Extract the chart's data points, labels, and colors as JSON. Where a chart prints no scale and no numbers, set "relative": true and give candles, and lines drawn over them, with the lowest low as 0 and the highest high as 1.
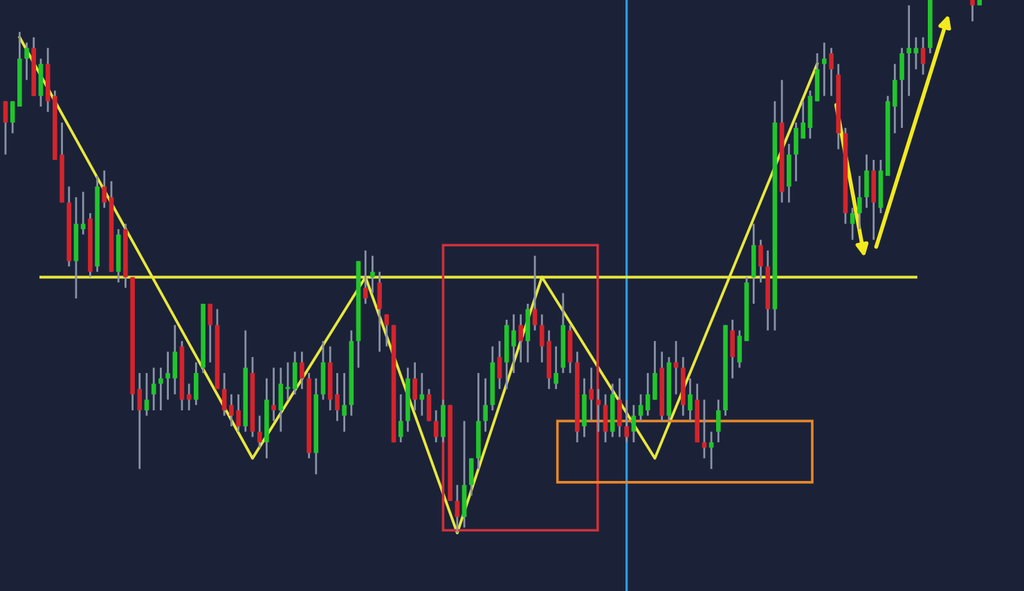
{
  "chart_data": {
    "type": "candlestick",
    "relative": true,
    "categories": [
      null,
      null,
      null,
      null,
      null,
      null,
      null,
      null,
      null,
      null,
      null,
      null,
      null,
      null,
      null,
      null,
      null,
      null,
      null,
      null,
      null,
      null,
      null,
      null,
      null,
      null,
      null,
      null,
      null,
      null,
      null,
      null,
      null,
      null,
      null,
      null,
      null,
      null,
      null,
      null,
      null,
      null,
      null,
      null,
      null,
      null,
      null,
      null,
      null,
      null,
      null,
      null,
      null,
      null,
      null,
      null,
      null,
      null,
      null,
      null,
      null,
      null,
      null,
      null,
      null,
      null,
      null,
      null,
      null,
      null,
      null,
      null,
      null,
      null,
      null,
      null,
      null,
      null,
      null,
      null,
      null,
      null,
      null,
      null,
      null,
      null,
      null,
      null,
      null,
      null,
      null,
      null,
      null,
      null,
      null,
      null,
      null,
      null,
      null,
      null,
      null,
      null,
      null,
      null,
      null,
      null,
      null,
      null,
      null,
      null,
      null,
      null,
      null,
      null,
      null,
      null,
      null,
      null,
      null,
      null,
      null,
      null,
      null,
      null,
      null,
      null,
      null,
      null,
      null,
      null,
      null,
      null,
      null,
      null,
      null,
      null,
      null,
      null,
      null,
      null,
      null,
      null,
      null,
      null,
      null
    ],
    "ohlc": [
      [
        0.81,
        0.81,
        0.71,
        0.77
      ],
      [
        0.77,
        0.81,
        0.75,
        0.81
      ],
      [
        0.8,
        0.94,
        0.8,
        0.89
      ],
      [
        0.89,
        0.92,
        0.85,
        0.91
      ],
      [
        0.91,
        0.93,
        0.82,
        0.82
      ],
      [
        0.82,
        0.89,
        0.8,
        0.88
      ],
      [
        0.88,
        0.91,
        0.79,
        0.81
      ],
      [
        0.82,
        0.83,
        0.7,
        0.7
      ],
      [
        0.71,
        0.77,
        0.62,
        0.62
      ],
      [
        0.62,
        0.65,
        0.5,
        0.51
      ],
      [
        0.51,
        0.63,
        0.44,
        0.58
      ],
      [
        0.57,
        0.64,
        0.56,
        0.58
      ],
      [
        0.59,
        0.6,
        0.48,
        0.49
      ],
      [
        0.5,
        0.67,
        0.49,
        0.65
      ],
      [
        0.65,
        0.68,
        0.61,
        0.62
      ],
      [
        0.63,
        0.66,
        0.49,
        0.49
      ],
      [
        0.49,
        0.57,
        0.47,
        0.56
      ],
      [
        0.57,
        0.58,
        0.46,
        0.48
      ],
      [
        0.48,
        0.48,
        0.23,
        0.26
      ],
      [
        0.27,
        0.3,
        0.12,
        0.23
      ],
      [
        0.23,
        0.3,
        0.22,
        0.25
      ],
      [
        0.26,
        0.31,
        0.23,
        0.28
      ],
      [
        0.28,
        0.31,
        0.23,
        0.29
      ],
      [
        0.29,
        0.34,
        0.25,
        0.3
      ],
      [
        0.29,
        0.39,
        0.26,
        0.34
      ],
      [
        0.35,
        0.36,
        0.23,
        0.25
      ],
      [
        0.26,
        0.28,
        0.23,
        0.25
      ],
      [
        0.25,
        0.32,
        0.24,
        0.3
      ],
      [
        0.31,
        0.43,
        0.3,
        0.43
      ],
      [
        0.43,
        0.43,
        0.32,
        0.39
      ],
      [
        0.39,
        0.42,
        0.27,
        0.27
      ],
      [
        0.27,
        0.3,
        0.22,
        0.23
      ],
      [
        0.24,
        0.26,
        0.2,
        0.22
      ],
      [
        0.23,
        0.26,
        0.19,
        0.2
      ],
      [
        0.2,
        0.38,
        0.19,
        0.31
      ],
      [
        0.3,
        0.33,
        0.18,
        0.19
      ],
      [
        0.19,
        0.22,
        0.16,
        0.17
      ],
      [
        0.17,
        0.29,
        0.14,
        0.25
      ],
      [
        0.24,
        0.31,
        0.21,
        0.23
      ],
      [
        0.23,
        0.31,
        0.19,
        0.28
      ],
      [
        0.27,
        0.32,
        0.25,
        0.27
      ],
      [
        0.27,
        0.34,
        0.26,
        0.32
      ],
      [
        0.32,
        0.34,
        0.27,
        0.29
      ],
      [
        0.29,
        0.3,
        0.14,
        0.15
      ],
      [
        0.15,
        0.29,
        0.11,
        0.26
      ],
      [
        0.26,
        0.36,
        0.25,
        0.32
      ],
      [
        0.32,
        0.35,
        0.23,
        0.25
      ],
      [
        0.26,
        0.3,
        0.21,
        0.23
      ],
      [
        0.22,
        0.3,
        0.19,
        0.24
      ],
      [
        0.24,
        0.38,
        0.22,
        0.36
      ],
      [
        0.36,
        0.51,
        0.31,
        0.51
      ],
      [
        0.46,
        0.53,
        0.43,
        0.44
      ],
      [
        0.48,
        0.52,
        0.45,
        0.49
      ],
      [
        0.47,
        0.49,
        0.34,
        0.42
      ],
      [
        0.41,
        0.41,
        0.35,
        0.39
      ],
      [
        0.39,
        0.39,
        0.17,
        0.17
      ],
      [
        0.18,
        0.26,
        0.17,
        0.21
      ],
      [
        0.21,
        0.31,
        0.19,
        0.29
      ],
      [
        0.29,
        0.32,
        0.23,
        0.25
      ],
      [
        0.25,
        0.3,
        0.22,
        0.26
      ],
      [
        0.26,
        0.27,
        0.21,
        0.21
      ],
      [
        0.21,
        0.23,
        0.17,
        0.18
      ],
      [
        0.18,
        0.25,
        0.17,
        0.24
      ],
      [
        0.24,
        0.24,
        0.06,
        0.06
      ],
      [
        0.06,
        0.09,
        0.0,
        0.03
      ],
      [
        0.03,
        0.21,
        0.01,
        0.09
      ],
      [
        0.09,
        0.14,
        0.07,
        0.14
      ],
      [
        0.14,
        0.3,
        0.12,
        0.21
      ],
      [
        0.21,
        0.29,
        0.19,
        0.24
      ],
      [
        0.24,
        0.35,
        0.23,
        0.32
      ],
      [
        0.33,
        0.36,
        0.27,
        0.29
      ],
      [
        0.32,
        0.4,
        0.27,
        0.39
      ],
      [
        0.35,
        0.41,
        0.3,
        0.38
      ],
      [
        0.39,
        0.41,
        0.32,
        0.36
      ],
      [
        0.36,
        0.43,
        0.32,
        0.42
      ],
      [
        0.42,
        0.52,
        0.38,
        0.39
      ],
      [
        0.39,
        0.41,
        0.32,
        0.35
      ],
      [
        0.36,
        0.38,
        0.27,
        0.29
      ],
      [
        0.28,
        0.35,
        0.27,
        0.3
      ],
      [
        0.31,
        0.45,
        0.3,
        0.39
      ],
      [
        0.38,
        0.39,
        0.3,
        0.32
      ],
      [
        0.32,
        0.34,
        0.17,
        0.19
      ],
      [
        0.2,
        0.29,
        0.18,
        0.26
      ],
      [
        0.27,
        0.31,
        0.21,
        0.25
      ],
      [
        0.25,
        0.27,
        0.19,
        0.24
      ],
      [
        0.24,
        0.26,
        0.17,
        0.19
      ],
      [
        0.19,
        0.28,
        0.18,
        0.26
      ],
      [
        0.25,
        0.29,
        0.18,
        0.2
      ],
      [
        0.2,
        0.25,
        0.17,
        0.18
      ],
      [
        0.19,
        0.24,
        0.17,
        0.22
      ],
      [
        0.22,
        0.26,
        0.21,
        0.24
      ],
      [
        0.23,
        0.3,
        0.22,
        0.26
      ],
      [
        0.25,
        0.36,
        0.25,
        0.3
      ],
      [
        0.31,
        0.34,
        0.21,
        0.22
      ],
      [
        0.22,
        0.33,
        0.21,
        0.32
      ],
      [
        0.32,
        0.36,
        0.26,
        0.31
      ],
      [
        0.31,
        0.33,
        0.22,
        0.24
      ],
      [
        0.23,
        0.29,
        0.21,
        0.26
      ],
      [
        0.25,
        0.28,
        0.17,
        0.17
      ],
      [
        0.17,
        0.25,
        0.14,
        0.16
      ],
      [
        0.16,
        0.19,
        0.12,
        0.17
      ],
      [
        0.19,
        0.25,
        0.17,
        0.23
      ],
      [
        0.23,
        0.39,
        0.22,
        0.39
      ],
      [
        0.38,
        0.4,
        0.29,
        0.33
      ],
      [
        0.32,
        0.38,
        0.31,
        0.37
      ],
      [
        0.36,
        0.48,
        0.36,
        0.47
      ],
      [
        0.48,
        0.58,
        0.43,
        0.54
      ],
      [
        0.54,
        0.55,
        0.47,
        0.5
      ],
      [
        0.5,
        0.53,
        0.38,
        0.42
      ],
      [
        0.42,
        0.81,
        0.38,
        0.77
      ],
      [
        0.77,
        0.85,
        0.62,
        0.64
      ],
      [
        0.65,
        0.73,
        0.62,
        0.71
      ],
      [
        0.71,
        0.77,
        0.66,
        0.76
      ],
      [
        0.74,
        0.81,
        0.74,
        0.77
      ],
      [
        0.76,
        0.83,
        0.74,
        0.82
      ],
      [
        0.81,
        0.9,
        0.81,
        0.87
      ],
      [
        0.88,
        0.92,
        0.82,
        0.89
      ],
      [
        0.9,
        0.91,
        0.82,
        0.87
      ],
      [
        0.86,
        0.88,
        0.72,
        0.75
      ],
      [
        0.75,
        0.76,
        0.58,
        0.6
      ],
      [
        0.58,
        0.61,
        0.55,
        0.6
      ],
      [
        0.6,
        0.67,
        0.57,
        0.63
      ],
      [
        0.63,
        0.71,
        0.61,
        0.68
      ],
      [
        0.68,
        0.7,
        0.55,
        0.62
      ],
      [
        0.61,
        0.7,
        0.6,
        0.68
      ],
      [
        0.67,
        0.82,
        0.67,
        0.81
      ],
      [
        0.8,
        0.88,
        0.75,
        0.85
      ],
      [
        0.85,
        0.91,
        0.76,
        0.9
      ],
      [
        0.9,
        0.99,
        0.82,
        0.91
      ],
      [
        0.9,
        0.93,
        0.87,
        0.91
      ],
      [
        0.91,
        0.93,
        0.86,
        0.88
      ],
      [
        0.91,
        1.0,
        0.9,
        1.0
      ],
      null,
      null,
      null,
      null,
      null,
      [
        1.0,
        1.0,
        0.96,
        0.99
      ],
      [
        0.99,
        1.0,
        0.99,
        1.0
      ],
      null,
      null,
      null,
      null,
      null,
      null
    ],
    "series": [
      {
        "type": "line",
        "color": "#e8e83a",
        "values": [
          null,
          null,
          0.93,
          null,
          null,
          null,
          null,
          null,
          null,
          null,
          null,
          null,
          null,
          null,
          null,
          null,
          null,
          null,
          null,
          null,
          null,
          null,
          null,
          null,
          null,
          null,
          null,
          null,
          null,
          null,
          null,
          null,
          null,
          null,
          null,
          0.14,
          null,
          null,
          null,
          null,
          null,
          null,
          null,
          null,
          null,
          null,
          null,
          null,
          null,
          null,
          null,
          0.48,
          null,
          null,
          null,
          null,
          null,
          null,
          null,
          null,
          null,
          null,
          null,
          null,
          0.0,
          null,
          null,
          null,
          null,
          null,
          null,
          null,
          null,
          null,
          null,
          null,
          0.48,
          null,
          null,
          null,
          null,
          null,
          null,
          null,
          null,
          null,
          null,
          null,
          null,
          null,
          null,
          null,
          0.14,
          null,
          null,
          null,
          null,
          null,
          null,
          null,
          null,
          null,
          null,
          null,
          null,
          null,
          null,
          null,
          null,
          null,
          null,
          null,
          null,
          null,
          null,
          0.88,
          null,
          null,
          null,
          null,
          null,
          null,
          null,
          null,
          null,
          null,
          null,
          null,
          null,
          null,
          null,
          null,
          null,
          null,
          null,
          null,
          null,
          null,
          null,
          null,
          null,
          null,
          null,
          null,
          null
        ]
      },
      {
        "type": "line",
        "color": "#e8e83a",
        "values": [
          null,
          null,
          null,
          null,
          null,
          0.48,
          null,
          null,
          null,
          null,
          null,
          null,
          null,
          null,
          null,
          null,
          null,
          null,
          null,
          null,
          null,
          null,
          null,
          null,
          null,
          null,
          null,
          null,
          null,
          null,
          null,
          null,
          null,
          null,
          null,
          null,
          null,
          null,
          null,
          null,
          null,
          null,
          null,
          null,
          null,
          null,
          null,
          null,
          null,
          null,
          null,
          null,
          null,
          null,
          null,
          null,
          null,
          null,
          null,
          null,
          null,
          null,
          null,
          null,
          null,
          null,
          null,
          null,
          null,
          null,
          null,
          null,
          null,
          null,
          null,
          null,
          null,
          null,
          null,
          null,
          null,
          null,
          null,
          null,
          null,
          null,
          null,
          null,
          null,
          null,
          null,
          null,
          null,
          null,
          null,
          null,
          null,
          null,
          null,
          null,
          null,
          null,
          null,
          null,
          null,
          null,
          null,
          null,
          null,
          null,
          null,
          null,
          null,
          null,
          null,
          null,
          null,
          null,
          null,
          null,
          null,
          null,
          null,
          null,
          null,
          null,
          null,
          null,
          null,
          0.48,
          null,
          null,
          null,
          null,
          null,
          null,
          null,
          null,
          null,
          null,
          null,
          null,
          null,
          null,
          null
        ]
      }
    ]
  }
}
